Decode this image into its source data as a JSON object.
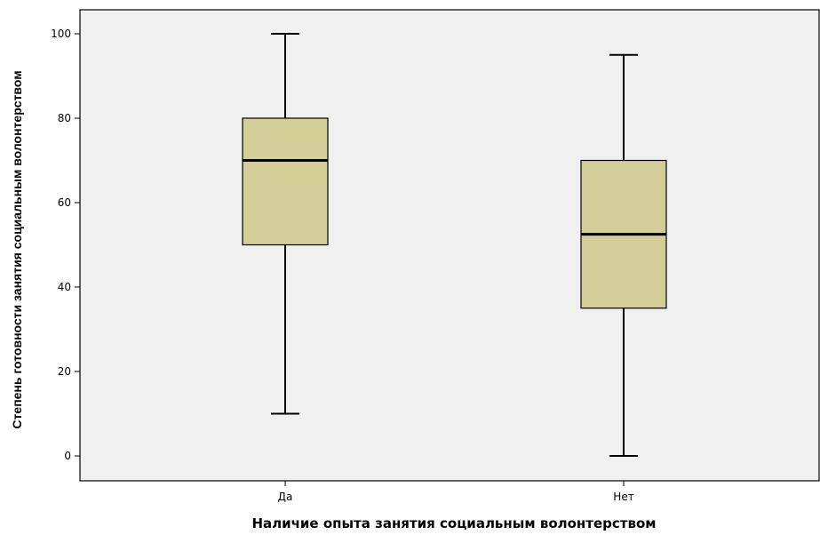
{
  "chart_data": {
    "type": "boxplot",
    "xlabel": "Наличие опыта занятия социальным волонтерством",
    "ylabel": "Степень готовности занятия социальным волонтерством",
    "categories": [
      "Да",
      "Нет"
    ],
    "boxes": [
      {
        "category": "Да",
        "min": 10,
        "q1": 50,
        "median": 70,
        "q3": 80,
        "max": 100
      },
      {
        "category": "Нет",
        "min": 0,
        "q1": 35,
        "median": 52.5,
        "q3": 70,
        "max": 95
      }
    ],
    "ylim": [
      -5,
      105
    ],
    "yticks": [
      0,
      20,
      40,
      60,
      80,
      100
    ],
    "grid": false,
    "colors": {
      "plot_background": "#F0F0F0",
      "box_fill": "#D3CE97",
      "box_stroke": "#000000",
      "median": "#000000"
    }
  }
}
